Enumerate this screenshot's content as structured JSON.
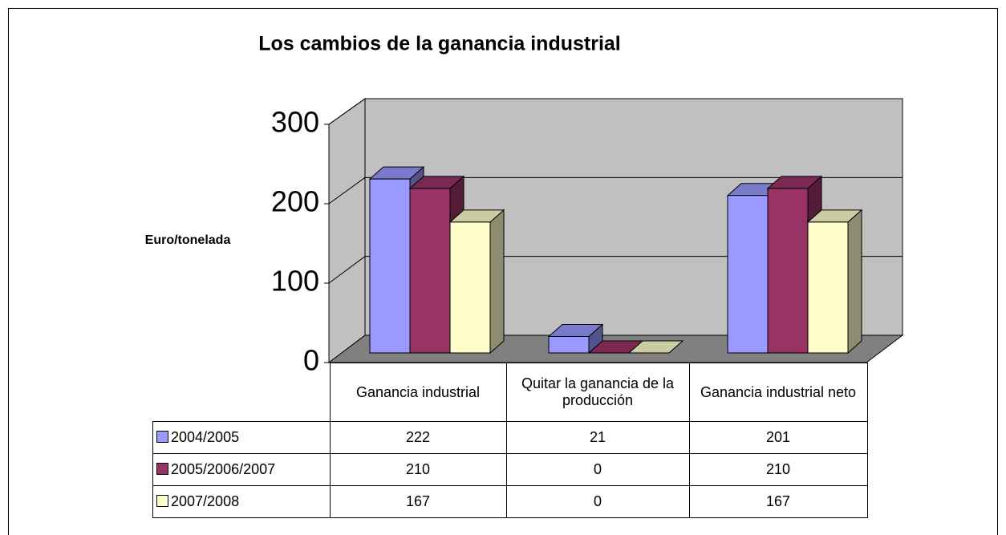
{
  "chart_data": {
    "type": "bar3d",
    "title": "Los cambios de la ganancia industrial",
    "y_label": "Euro/tonelada",
    "categories": [
      "Ganancia industrial",
      "Quitar la ganancia de la producción",
      "Ganancia industrial neto"
    ],
    "series": [
      {
        "name": "2004/2005",
        "color": "#9999ff",
        "values": [
          222,
          21,
          201
        ]
      },
      {
        "name": "2005/2006/2007",
        "color": "#993366",
        "values": [
          210,
          0,
          210
        ]
      },
      {
        "name": "2007/2008",
        "color": "#ffffcc",
        "values": [
          167,
          0,
          167
        ]
      }
    ],
    "ylim": [
      0,
      300
    ],
    "yticks": [
      0,
      100,
      200,
      300
    ],
    "grid": true
  }
}
